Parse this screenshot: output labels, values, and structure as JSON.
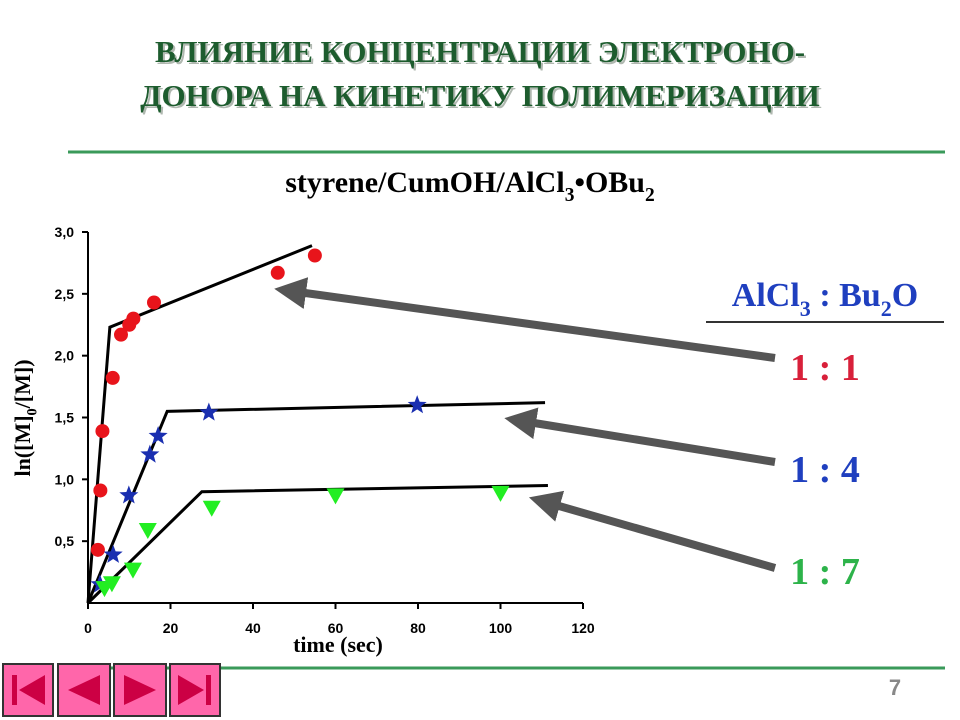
{
  "header": {
    "title_lines": [
      "ВЛИЯНИЕ КОНЦЕНТРАЦИИ ЭЛЕКТРОНО-",
      "ДОНОРА НА КИНЕТИКУ ПОЛИМЕРИЗАЦИИ"
    ]
  },
  "chart_data": {
    "type": "scatter",
    "title": [
      "styrene/CumOH/AlCl",
      "3",
      "•OBu",
      "2"
    ],
    "x_label": "time (sec)",
    "y_label": [
      "ln([M]",
      "0",
      "/[M])"
    ],
    "legend_title": [
      "AlCl",
      "3",
      " : Bu",
      "2",
      "O"
    ],
    "xlim": [
      0,
      120
    ],
    "xticks": [
      0,
      20,
      40,
      60,
      80,
      100,
      120
    ],
    "ylim": [
      0,
      3
    ],
    "yticks": [
      {
        "value": 0.5,
        "label": "0,5"
      },
      {
        "value": 1,
        "label": "1,0"
      },
      {
        "value": 1.5,
        "label": "1,5"
      },
      {
        "value": 2,
        "label": "2,0"
      },
      {
        "value": 2.5,
        "label": "2,5"
      },
      {
        "value": 3,
        "label": "3,0"
      }
    ],
    "series": [
      {
        "name": "1 : 1",
        "color": "#e8141b",
        "label_color": "#d8203a",
        "marker": "circle",
        "x": [
          2.4,
          3,
          3.5,
          6,
          8,
          10,
          11,
          16,
          46,
          55
        ],
        "values": [
          0.43,
          0.91,
          1.39,
          1.82,
          2.17,
          2.25,
          2.3,
          2.43,
          2.67,
          2.81
        ],
        "fit": {
          "x": [
            0,
            5.3,
            54.3
          ],
          "values": [
            0,
            2.23,
            2.89
          ]
        }
      },
      {
        "name": "1 : 4",
        "color": "#1a2fb0",
        "label_color": "#1f3fbf",
        "marker": "star",
        "x": [
          2.9,
          6.1,
          9.9,
          15,
          17,
          29.3,
          79.8
        ],
        "values": [
          0.15,
          0.39,
          0.87,
          1.2,
          1.35,
          1.54,
          1.6
        ],
        "fit": {
          "x": [
            0,
            19.2,
            110.8
          ],
          "values": [
            0,
            1.55,
            1.62
          ]
        }
      },
      {
        "name": "1 : 7",
        "color": "#22ee22",
        "label_color": "#2db34a",
        "marker": "triangle",
        "x": [
          4,
          5.8,
          10.9,
          14.5,
          30,
          60,
          100
        ],
        "values": [
          0.12,
          0.16,
          0.27,
          0.59,
          0.77,
          0.87,
          0.89
        ],
        "fit": {
          "x": [
            0,
            27.6,
            111.5
          ],
          "values": [
            0,
            0.9,
            0.95
          ]
        }
      }
    ]
  },
  "footer": {
    "page": "7"
  }
}
